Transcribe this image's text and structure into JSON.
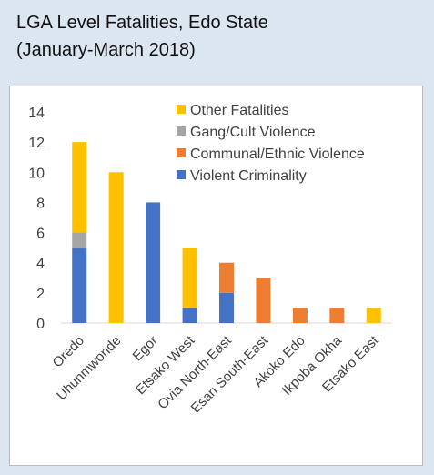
{
  "page": {
    "title_line1": "LGA Level Fatalities, Edo State",
    "title_line2": "(January-March 2018)"
  },
  "chart_data": {
    "type": "bar",
    "stacked": true,
    "title": "",
    "xlabel": "",
    "ylabel": "",
    "ylim": [
      0,
      14
    ],
    "yticks": [
      0,
      2,
      4,
      6,
      8,
      10,
      12,
      14
    ],
    "grid": false,
    "legend_position": "top-right",
    "categories": [
      "Oredo",
      "Uhunmwonde",
      "Egor",
      "Etsako West",
      "Ovia North-East",
      "Esan South-East",
      "Akoko Edo",
      "Ikpoba Okha",
      "Etsako East"
    ],
    "series": [
      {
        "name": "Violent Criminality",
        "color": "#4472c4",
        "values": [
          5,
          0,
          8,
          1,
          2,
          0,
          0,
          0,
          0
        ]
      },
      {
        "name": "Communal/Ethnic Violence",
        "color": "#ed7d31",
        "values": [
          0,
          0,
          0,
          0,
          2,
          3,
          1,
          1,
          0
        ]
      },
      {
        "name": "Gang/Cult Violence",
        "color": "#a5a5a5",
        "values": [
          1,
          0,
          0,
          0,
          0,
          0,
          0,
          0,
          0
        ]
      },
      {
        "name": "Other Fatalities",
        "color": "#ffc000",
        "values": [
          6,
          10,
          0,
          4,
          0,
          0,
          0,
          0,
          1
        ]
      }
    ],
    "legend_order": [
      "Other Fatalities",
      "Gang/Cult Violence",
      "Communal/Ethnic Violence",
      "Violent Criminality"
    ]
  }
}
